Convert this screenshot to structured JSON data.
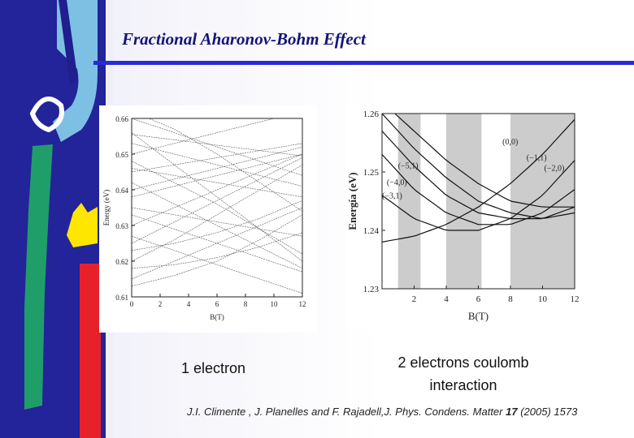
{
  "slide": {
    "title": "Fractional Aharonov-Bohm Effect",
    "caption_left": "1 electron",
    "caption_right_line1": "2 electrons coulomb",
    "caption_right_line2": "interaction",
    "citation": {
      "authors": "J.I. Climente , J. Planelles and F. Rajadell,J. Phys. Condens. Matter ",
      "volume": "17",
      "rest": " (2005) 1573"
    }
  },
  "chart_data": [
    {
      "type": "line",
      "title": "",
      "xlabel": "B(T)",
      "ylabel": "Energy (eV)",
      "xlim": [
        0,
        12
      ],
      "ylim": [
        0.61,
        0.66
      ],
      "xticks": [
        "0",
        "2",
        "4",
        "6",
        "8",
        "10",
        "12"
      ],
      "yticks": [
        "0.61",
        "0.62",
        "0.63",
        "0.64",
        "0.65",
        "0.66"
      ],
      "series": [
        {
          "x": [
            0,
            3,
            6,
            9,
            12
          ],
          "y": [
            0.6555,
            0.654,
            0.6525,
            0.651,
            0.6495
          ]
        },
        {
          "x": [
            0,
            3,
            6,
            9,
            12
          ],
          "y": [
            0.65,
            0.653,
            0.656,
            0.659,
            0.662
          ]
        },
        {
          "x": [
            0,
            3,
            6,
            9,
            12
          ],
          "y": [
            0.645,
            0.647,
            0.649,
            0.651,
            0.653
          ]
        },
        {
          "x": [
            0,
            3,
            6,
            9,
            12
          ],
          "y": [
            0.64,
            0.643,
            0.646,
            0.649,
            0.652
          ]
        },
        {
          "x": [
            0,
            3,
            6,
            9,
            12
          ],
          "y": [
            0.66,
            0.656,
            0.652,
            0.648,
            0.644
          ]
        },
        {
          "x": [
            0,
            3,
            6,
            9,
            12
          ],
          "y": [
            0.662,
            0.657,
            0.65,
            0.642,
            0.634
          ]
        },
        {
          "x": [
            0,
            3,
            6,
            9,
            12
          ],
          "y": [
            0.648,
            0.642,
            0.636,
            0.629,
            0.622
          ]
        },
        {
          "x": [
            0,
            3,
            6,
            9,
            12
          ],
          "y": [
            0.656,
            0.647,
            0.638,
            0.629,
            0.62
          ]
        },
        {
          "x": [
            0,
            3,
            6,
            9,
            12
          ],
          "y": [
            0.63,
            0.635,
            0.64,
            0.645,
            0.65
          ]
        },
        {
          "x": [
            0,
            3,
            6,
            9,
            12
          ],
          "y": [
            0.625,
            0.631,
            0.637,
            0.643,
            0.649
          ]
        },
        {
          "x": [
            0,
            3,
            6,
            9,
            12
          ],
          "y": [
            0.62,
            0.626,
            0.633,
            0.64,
            0.647
          ]
        },
        {
          "x": [
            0,
            3,
            6,
            9,
            12
          ],
          "y": [
            0.635,
            0.633,
            0.631,
            0.629,
            0.627
          ]
        },
        {
          "x": [
            0,
            3,
            6,
            9,
            12
          ],
          "y": [
            0.642,
            0.636,
            0.63,
            0.624,
            0.618
          ]
        },
        {
          "x": [
            0,
            3,
            6,
            9,
            12
          ],
          "y": [
            0.627,
            0.623,
            0.619,
            0.615,
            0.611
          ]
        },
        {
          "x": [
            0,
            3,
            6,
            9,
            12
          ],
          "y": [
            0.618,
            0.619,
            0.621,
            0.624,
            0.628
          ]
        },
        {
          "x": [
            0,
            3,
            6,
            9,
            12
          ],
          "y": [
            0.615,
            0.62,
            0.625,
            0.63,
            0.635
          ]
        },
        {
          "x": [
            0,
            3,
            6,
            9,
            12
          ],
          "y": [
            0.638,
            0.641,
            0.644,
            0.647,
            0.65
          ]
        },
        {
          "x": [
            0,
            3,
            6,
            9,
            12
          ],
          "y": [
            0.653,
            0.65,
            0.647,
            0.644,
            0.641
          ]
        },
        {
          "x": [
            0,
            3,
            6,
            9,
            12
          ],
          "y": [
            0.633,
            0.629,
            0.625,
            0.621,
            0.617
          ]
        },
        {
          "x": [
            0,
            3,
            6,
            9,
            12
          ],
          "y": [
            0.623,
            0.625,
            0.628,
            0.632,
            0.637
          ]
        },
        {
          "x": [
            0,
            3,
            6,
            9,
            12
          ],
          "y": [
            0.646,
            0.644,
            0.642,
            0.64,
            0.638
          ]
        },
        {
          "x": [
            0,
            3,
            6,
            9,
            12
          ],
          "y": [
            0.613,
            0.616,
            0.62,
            0.626,
            0.633
          ]
        }
      ]
    },
    {
      "type": "line",
      "title": "",
      "xlabel": "B(T)",
      "ylabel": "Energía (eV)",
      "xlim": [
        0,
        12
      ],
      "ylim": [
        1.23,
        1.26
      ],
      "xticks": [
        "2",
        "4",
        "6",
        "8",
        "10",
        "12"
      ],
      "yticks": [
        "1.23",
        "1.24",
        "1.25",
        "1.26"
      ],
      "shaded_bands": [
        [
          1.0,
          2.4
        ],
        [
          4.0,
          6.2
        ],
        [
          8.0,
          12.0
        ]
      ],
      "series": [
        {
          "name": "(0,0)",
          "x": [
            0,
            2,
            4,
            6,
            8,
            10,
            12
          ],
          "y": [
            1.238,
            1.239,
            1.241,
            1.244,
            1.248,
            1.253,
            1.259
          ]
        },
        {
          "name": "(-1,1)",
          "x": [
            0,
            2,
            4,
            6,
            8,
            10,
            12
          ],
          "y": [
            1.246,
            1.242,
            1.24,
            1.24,
            1.242,
            1.246,
            1.252
          ]
        },
        {
          "name": "(-2,0)",
          "x": [
            0,
            2,
            4,
            6,
            8,
            10,
            12
          ],
          "y": [
            1.253,
            1.247,
            1.243,
            1.241,
            1.241,
            1.243,
            1.247
          ]
        },
        {
          "name": "(-3,1)",
          "x": [
            0,
            2,
            4,
            6,
            8,
            10,
            12
          ],
          "y": [
            1.257,
            1.251,
            1.246,
            1.243,
            1.242,
            1.242,
            1.244
          ]
        },
        {
          "name": "(-4,0)",
          "x": [
            0,
            2,
            4,
            6,
            8,
            10,
            12
          ],
          "y": [
            1.26,
            1.254,
            1.249,
            1.245,
            1.243,
            1.242,
            1.243
          ]
        },
        {
          "name": "(-5,1)",
          "x": [
            0,
            2,
            4,
            6,
            8,
            10,
            12
          ],
          "y": [
            1.262,
            1.257,
            1.252,
            1.248,
            1.245,
            1.244,
            1.244
          ]
        }
      ],
      "labels": [
        {
          "text": "(0,0)",
          "x": 7.5,
          "y": 1.2547
        },
        {
          "text": "(−1,1)",
          "x": 9.0,
          "y": 1.252
        },
        {
          "text": "(−2,0)",
          "x": 10.1,
          "y": 1.2502
        },
        {
          "text": "(−5,1)",
          "x": 1.0,
          "y": 1.2506
        },
        {
          "text": "(−4,0)",
          "x": 0.3,
          "y": 1.2478
        },
        {
          "text": "(−3,1)",
          "x": 0.0,
          "y": 1.2455
        }
      ]
    }
  ]
}
